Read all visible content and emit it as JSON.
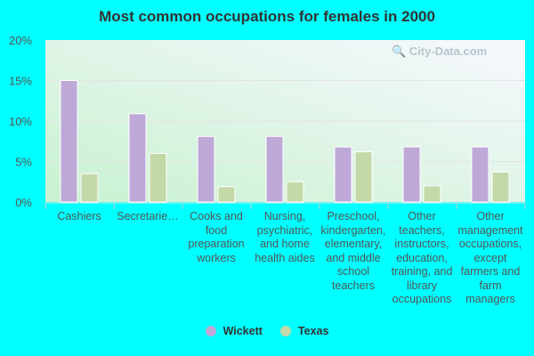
{
  "chart_data": {
    "type": "bar",
    "title": "Most common occupations for females in 2000",
    "categories": [
      "Cashiers",
      "Secretarie…",
      "Cooks and food preparation workers",
      "Nursing, psychiatric, and home health aides",
      "Preschool, kindergarten, elementary, and middle school teachers",
      "Other teachers, instructors, education, training, and library occupations",
      "Other management occupations, except farmers and farm managers"
    ],
    "series": [
      {
        "name": "Wickett",
        "color": "#bea8d8",
        "values": [
          15.0,
          10.9,
          8.1,
          8.1,
          6.8,
          6.8,
          6.8
        ]
      },
      {
        "name": "Texas",
        "color": "#c4d9a8",
        "values": [
          3.5,
          6.0,
          1.9,
          2.5,
          6.2,
          2.0,
          3.7
        ]
      }
    ],
    "ylim": [
      0,
      20
    ],
    "yticks": [
      "0%",
      "5%",
      "10%",
      "15%",
      "20%"
    ],
    "grid": true,
    "legend": "bottom"
  },
  "watermark": "City-Data.com"
}
